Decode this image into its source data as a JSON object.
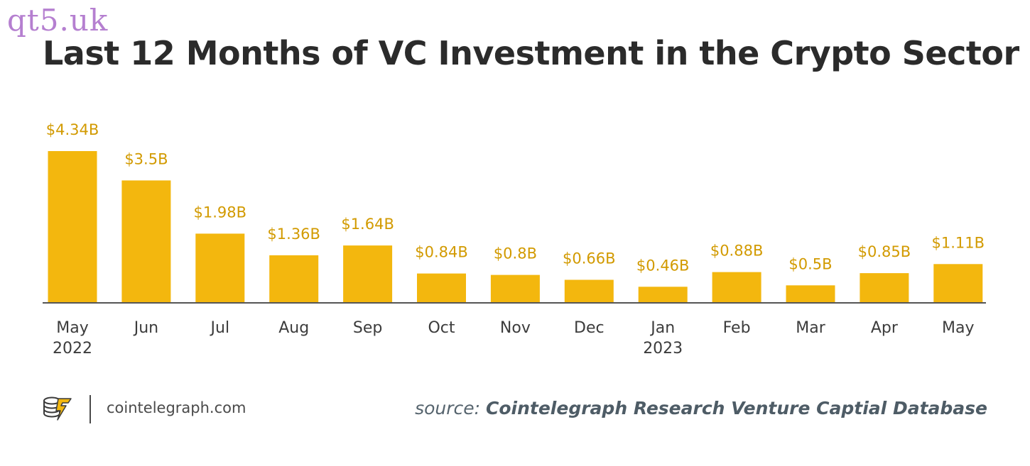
{
  "watermark": "qt5.uk",
  "title": "Last 12 Months of VC Investment in the Crypto Sector",
  "colors": {
    "bar": "#f3b70e",
    "value_label": "#d29a00",
    "axis": "#555555",
    "title": "#2b2b2b"
  },
  "footer": {
    "logo_icon": "cointelegraph-logo-icon",
    "site": "cointelegraph.com",
    "source_prefix": "source:",
    "source_name": "Cointelegraph Research Venture Captial Database"
  },
  "chart_data": {
    "type": "bar",
    "title": "Last 12 Months of VC Investment in the Crypto Sector",
    "xlabel": "",
    "ylabel": "",
    "unit": "$B",
    "grid": false,
    "categories": [
      "May",
      "Jun",
      "Jul",
      "Aug",
      "Sep",
      "Oct",
      "Nov",
      "Dec",
      "Jan",
      "Feb",
      "Mar",
      "Apr",
      "May"
    ],
    "category_sublabels": [
      "2022",
      "",
      "",
      "",
      "",
      "",
      "",
      "",
      "2023",
      "",
      "",
      "",
      ""
    ],
    "values": [
      4.34,
      3.5,
      1.98,
      1.36,
      1.64,
      0.84,
      0.8,
      0.66,
      0.46,
      0.88,
      0.5,
      0.85,
      1.11
    ],
    "value_labels": [
      "$4.34B",
      "$3.5B",
      "$1.98B",
      "$1.36B",
      "$1.64B",
      "$0.84B",
      "$0.8B",
      "$0.66B",
      "$0.46B",
      "$0.88B",
      "$0.5B",
      "$0.85B",
      "$1.11B"
    ],
    "ylim": [
      0,
      4.34
    ]
  }
}
